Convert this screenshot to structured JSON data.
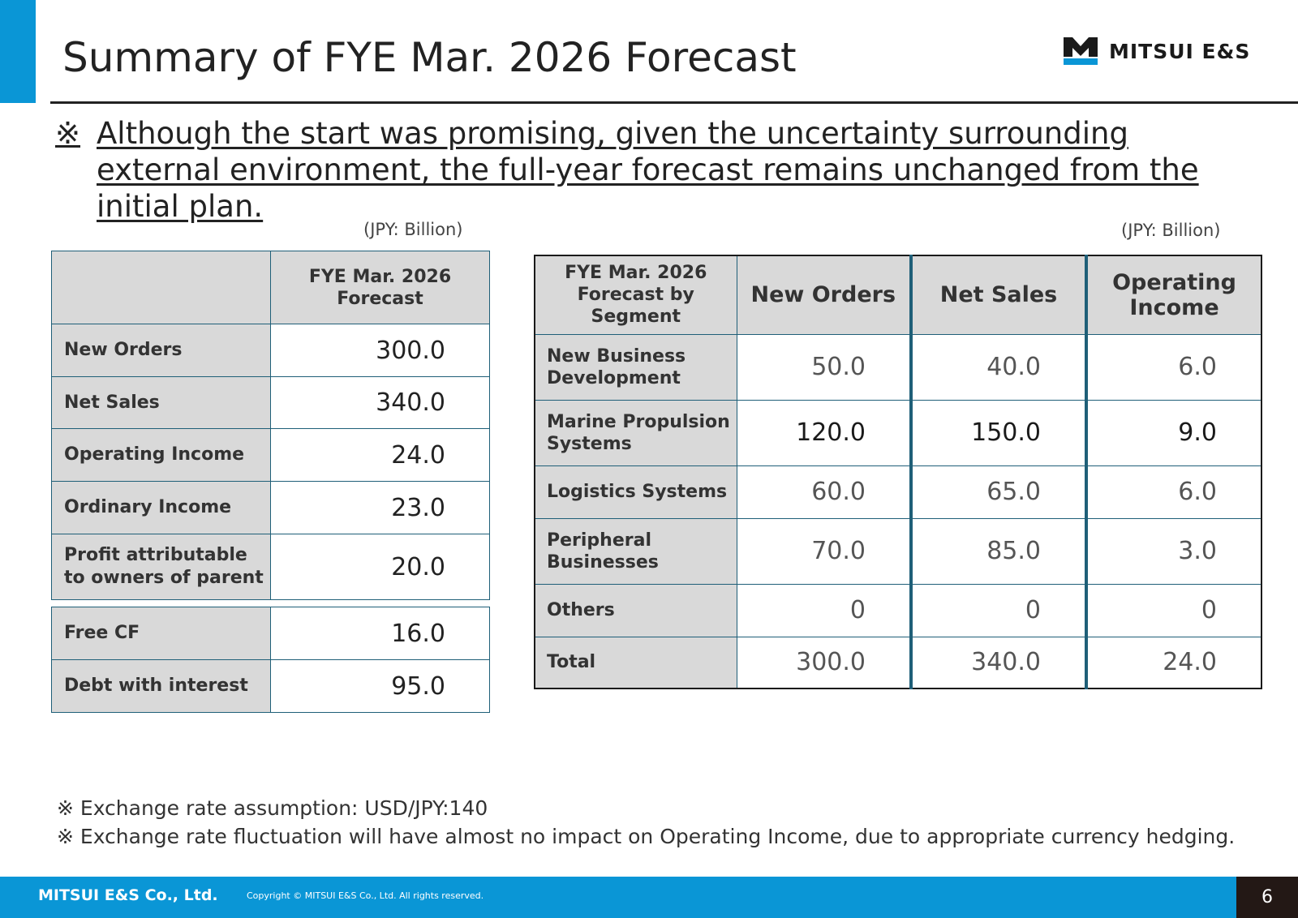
{
  "title": "Summary of FYE Mar. 2026 Forecast",
  "logo": {
    "text": "MITSUI E&S",
    "colors": {
      "mark": "#1a1a1a",
      "bar": "#0a96d6"
    }
  },
  "note": {
    "mark": "※",
    "text": "Although the start was promising, given the uncertainty surrounding external environment, the full-year forecast remains unchanged from the initial plan."
  },
  "left_table": {
    "unit": "(JPY: Billion)",
    "header": "FYE Mar. 2026 Forecast",
    "rows": [
      {
        "label": "New Orders",
        "value": "300.0"
      },
      {
        "label": "Net Sales",
        "value": "340.0"
      },
      {
        "label": "Operating Income",
        "value": "24.0"
      },
      {
        "label": "Ordinary Income",
        "value": "23.0"
      },
      {
        "label": "Profit attributable to owners of parent",
        "value": "20.0"
      }
    ],
    "rows2": [
      {
        "label": "Free CF",
        "value": "16.0"
      },
      {
        "label": "Debt with interest",
        "value": "95.0"
      }
    ]
  },
  "right_table": {
    "unit": "(JPY: Billion)",
    "header_segment": "FYE Mar. 2026 Forecast by Segment",
    "columns": [
      "New Orders",
      "Net Sales",
      "Operating Income"
    ],
    "rows": [
      {
        "label": "New Business Development",
        "values": [
          "50.0",
          "40.0",
          "6.0"
        ]
      },
      {
        "label": "Marine Propulsion Systems",
        "values": [
          "120.0",
          "150.0",
          "9.0"
        ]
      },
      {
        "label": "Logistics Systems",
        "values": [
          "60.0",
          "65.0",
          "6.0"
        ]
      },
      {
        "label": "Peripheral Businesses",
        "values": [
          "70.0",
          "85.0",
          "3.0"
        ]
      },
      {
        "label": "Others",
        "values": [
          "0",
          "0",
          "0"
        ]
      },
      {
        "label": "Total",
        "values": [
          "300.0",
          "340.0",
          "24.0"
        ]
      }
    ]
  },
  "footnotes": [
    "※ Exchange rate assumption: USD/JPY:140",
    "※ Exchange rate fluctuation will have almost no impact on Operating Income, due to appropriate currency hedging."
  ],
  "footer": {
    "company": "MITSUI E&S Co., Ltd.",
    "copyright": "Copyright © MITSUI E&S Co., Ltd. All rights reserved.",
    "page_number": "6"
  }
}
